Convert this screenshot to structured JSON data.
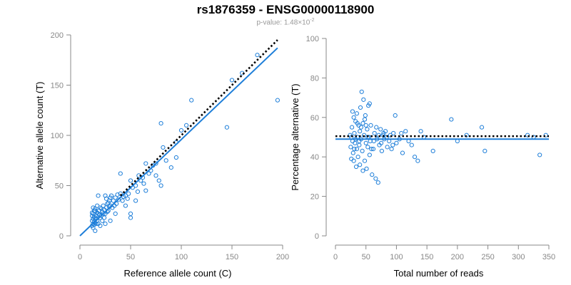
{
  "title": "rs1876359 - ENSG00000118900",
  "subtitle": {
    "prefix": "p-value: ",
    "mantissa": "1.48",
    "times": "×10",
    "exponent": "-2"
  },
  "colors": {
    "series": "#1f7fd9",
    "reference_line": "#000000",
    "axis": "#888888",
    "tick_label": "#888888",
    "axis_title": "#000000"
  },
  "chart_data": [
    {
      "type": "scatter",
      "xlabel": "Reference allele count (C)",
      "ylabel": "Alternative allele count (T)",
      "xlim": [
        0,
        200
      ],
      "ylim": [
        0,
        200
      ],
      "xticks": [
        0,
        50,
        100,
        150,
        200
      ],
      "yticks": [
        0,
        50,
        100,
        150,
        200
      ],
      "grid": false,
      "marker": "open-circle",
      "points": [
        [
          12,
          10
        ],
        [
          13,
          12
        ],
        [
          14,
          11
        ],
        [
          15,
          13
        ],
        [
          12,
          15
        ],
        [
          13,
          17
        ],
        [
          14,
          14
        ],
        [
          16,
          12
        ],
        [
          12,
          20
        ],
        [
          13,
          22
        ],
        [
          15,
          18
        ],
        [
          14,
          25
        ],
        [
          13,
          28
        ],
        [
          16,
          20
        ],
        [
          17,
          15
        ],
        [
          18,
          22
        ],
        [
          15,
          27
        ],
        [
          20,
          18
        ],
        [
          19,
          25
        ],
        [
          17,
          30
        ],
        [
          21,
          20
        ],
        [
          22,
          24
        ],
        [
          18,
          12
        ],
        [
          23,
          30
        ],
        [
          25,
          22
        ],
        [
          24,
          18
        ],
        [
          26,
          28
        ],
        [
          22,
          15
        ],
        [
          20,
          28
        ],
        [
          27,
          32
        ],
        [
          28,
          25
        ],
        [
          30,
          30
        ],
        [
          29,
          35
        ],
        [
          32,
          28
        ],
        [
          31,
          40
        ],
        [
          33,
          35
        ],
        [
          35,
          38
        ],
        [
          34,
          30
        ],
        [
          36,
          32
        ],
        [
          38,
          36
        ],
        [
          40,
          42
        ],
        [
          42,
          35
        ],
        [
          45,
          40
        ],
        [
          48,
          42
        ],
        [
          50,
          55
        ],
        [
          55,
          50
        ],
        [
          58,
          60
        ],
        [
          60,
          55
        ],
        [
          62,
          58
        ],
        [
          65,
          72
        ],
        [
          70,
          65
        ],
        [
          72,
          70
        ],
        [
          75,
          60
        ],
        [
          78,
          55
        ],
        [
          80,
          50
        ],
        [
          65,
          45
        ],
        [
          75,
          72
        ],
        [
          85,
          75
        ],
        [
          90,
          68
        ],
        [
          95,
          78
        ],
        [
          100,
          105
        ],
        [
          105,
          110
        ],
        [
          110,
          135
        ],
        [
          80,
          112
        ],
        [
          150,
          155
        ],
        [
          160,
          162
        ],
        [
          175,
          180
        ],
        [
          195,
          135
        ],
        [
          145,
          108
        ],
        [
          50,
          22
        ],
        [
          50,
          18
        ],
        [
          40,
          62
        ],
        [
          25,
          40
        ],
        [
          18,
          40
        ],
        [
          15,
          5
        ],
        [
          20,
          10
        ],
        [
          25,
          12
        ],
        [
          30,
          15
        ],
        [
          35,
          22
        ],
        [
          45,
          30
        ],
        [
          55,
          35
        ],
        [
          30,
          38
        ],
        [
          28,
          33
        ],
        [
          26,
          37
        ],
        [
          23,
          22
        ],
        [
          24,
          26
        ],
        [
          19,
          21
        ],
        [
          16,
          17
        ],
        [
          13,
          8
        ],
        [
          14,
          19
        ],
        [
          12,
          23
        ],
        [
          15,
          25
        ],
        [
          17,
          23
        ],
        [
          21,
          27
        ],
        [
          27,
          24
        ],
        [
          29,
          29
        ],
        [
          37,
          41
        ],
        [
          43,
          39
        ],
        [
          47,
          37
        ],
        [
          52,
          48
        ],
        [
          57,
          44
        ],
        [
          63,
          52
        ],
        [
          68,
          62
        ],
        [
          82,
          88
        ],
        [
          95,
          93
        ]
      ],
      "fit_line": {
        "style": "solid",
        "points": [
          [
            0,
            0
          ],
          [
            195,
            187
          ]
        ]
      },
      "reference_line": {
        "style": "dotted",
        "points": [
          [
            40,
            40
          ],
          [
            195,
            195
          ]
        ]
      }
    },
    {
      "type": "scatter",
      "xlabel": "Total number of reads",
      "ylabel": "Percentage alternative (T)",
      "xlim": [
        0,
        350
      ],
      "ylim": [
        0,
        100
      ],
      "xticks": [
        0,
        50,
        100,
        150,
        200,
        250,
        300,
        350
      ],
      "yticks": [
        0,
        20,
        40,
        60,
        80,
        100
      ],
      "grid": false,
      "marker": "open-circle",
      "points": [
        [
          25,
          45
        ],
        [
          26,
          50
        ],
        [
          27,
          55
        ],
        [
          28,
          48
        ],
        [
          29,
          42
        ],
        [
          30,
          60
        ],
        [
          30,
          38
        ],
        [
          31,
          52
        ],
        [
          32,
          47
        ],
        [
          33,
          58
        ],
        [
          34,
          35
        ],
        [
          35,
          62
        ],
        [
          35,
          44
        ],
        [
          36,
          50
        ],
        [
          37,
          40
        ],
        [
          38,
          56
        ],
        [
          39,
          46
        ],
        [
          40,
          53
        ],
        [
          40,
          36
        ],
        [
          41,
          65
        ],
        [
          42,
          49
        ],
        [
          43,
          73
        ],
        [
          44,
          43
        ],
        [
          45,
          57
        ],
        [
          46,
          69
        ],
        [
          47,
          51
        ],
        [
          48,
          38
        ],
        [
          49,
          61
        ],
        [
          50,
          47
        ],
        [
          51,
          34
        ],
        [
          52,
          54
        ],
        [
          53,
          45
        ],
        [
          54,
          66
        ],
        [
          55,
          50
        ],
        [
          56,
          41
        ],
        [
          57,
          48
        ],
        [
          58,
          56
        ],
        [
          60,
          31
        ],
        [
          62,
          44
        ],
        [
          64,
          52
        ],
        [
          66,
          29
        ],
        [
          68,
          49
        ],
        [
          70,
          27
        ],
        [
          72,
          46
        ],
        [
          74,
          54
        ],
        [
          76,
          43
        ],
        [
          78,
          51
        ],
        [
          80,
          49
        ],
        [
          82,
          53
        ],
        [
          85,
          45
        ],
        [
          88,
          48
        ],
        [
          90,
          51
        ],
        [
          92,
          44
        ],
        [
          95,
          52
        ],
        [
          98,
          61
        ],
        [
          100,
          47
        ],
        [
          105,
          49
        ],
        [
          110,
          42
        ],
        [
          115,
          53
        ],
        [
          120,
          48
        ],
        [
          125,
          46
        ],
        [
          130,
          40
        ],
        [
          135,
          38
        ],
        [
          140,
          53
        ],
        [
          145,
          50
        ],
        [
          160,
          43
        ],
        [
          190,
          59
        ],
        [
          200,
          48
        ],
        [
          215,
          51
        ],
        [
          240,
          55
        ],
        [
          245,
          43
        ],
        [
          315,
          51
        ],
        [
          325,
          50
        ],
        [
          335,
          41
        ],
        [
          345,
          51
        ],
        [
          24,
          51
        ],
        [
          26,
          39
        ],
        [
          28,
          63
        ],
        [
          31,
          44
        ],
        [
          33,
          49
        ],
        [
          36,
          57
        ],
        [
          39,
          48
        ],
        [
          42,
          55
        ],
        [
          45,
          33
        ],
        [
          48,
          59
        ],
        [
          50,
          56
        ],
        [
          53,
          50
        ],
        [
          56,
          67
        ],
        [
          59,
          44
        ],
        [
          63,
          48
        ],
        [
          67,
          55
        ],
        [
          71,
          51
        ],
        [
          75,
          47
        ],
        [
          79,
          52
        ],
        [
          84,
          50
        ],
        [
          94,
          46
        ],
        [
          108,
          52
        ]
      ],
      "fit_line": {
        "style": "solid",
        "y": 49
      },
      "reference_line": {
        "style": "dotted",
        "y": 50.5
      }
    }
  ]
}
